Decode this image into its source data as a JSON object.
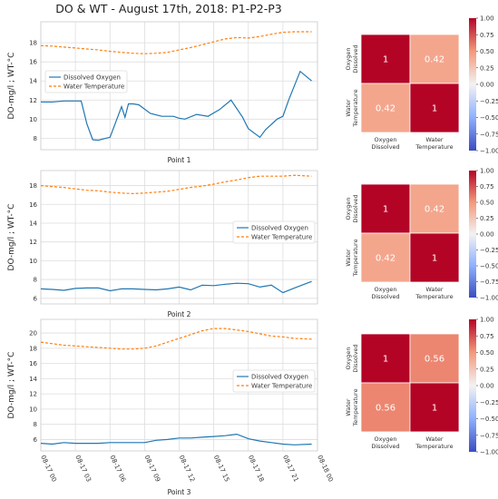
{
  "figure": {
    "title": "DO & WT - August 17th, 2018: P1-P2-P3"
  },
  "colors": {
    "dissolved_oxygen": "#1f77b4",
    "water_temperature": "#ff7f0e",
    "grid": "#dddddd",
    "axes_edge": "#cccccc"
  },
  "chart_data": [
    {
      "type": "line",
      "xlabel": "Point 1",
      "ylabel": "DO-mg/l ; WT-°C",
      "ylim": [
        6.8,
        20.2
      ],
      "yticks": [
        8,
        10,
        12,
        14,
        16,
        18
      ],
      "xlim": [
        0,
        24
      ],
      "x_tick_values": [
        0,
        3,
        6,
        9,
        12,
        15,
        18,
        21,
        24
      ],
      "x_tick_labels": [
        "08-17 00",
        "08-17 03",
        "08-17 06",
        "08-17 09",
        "08-17 12",
        "08-17 15",
        "08-17 18",
        "08-17 21",
        "08-18 00"
      ],
      "show_xtick_labels": false,
      "legend_position": "center-left",
      "grid": true,
      "series": [
        {
          "name": "Dissolved Oxygen",
          "style": "solid",
          "x": [
            0,
            1,
            2,
            3,
            3.5,
            4,
            4.5,
            5,
            6,
            7,
            7.3,
            7.6,
            8,
            8.5,
            9.5,
            10.5,
            11.5,
            12,
            12.5,
            13.5,
            14.5,
            15.5,
            16.5,
            17.5,
            18,
            19,
            19.5,
            20.5,
            21,
            21.5,
            22.5,
            23.5
          ],
          "y": [
            11.8,
            11.8,
            11.9,
            11.9,
            11.9,
            9.5,
            7.85,
            7.8,
            8.1,
            11.3,
            10.2,
            11.6,
            11.6,
            11.5,
            10.6,
            10.3,
            10.3,
            10.1,
            10.0,
            10.5,
            10.3,
            11.0,
            12.0,
            10.2,
            9.0,
            8.1,
            8.9,
            10.0,
            10.3,
            12.0,
            15.0,
            14.0
          ]
        },
        {
          "name": "Water Temperature",
          "style": "dashed",
          "x": [
            0,
            1,
            2,
            3,
            4,
            5,
            6,
            7,
            8,
            9,
            10,
            11,
            12,
            13,
            14,
            15,
            16,
            17,
            18,
            19,
            20,
            21,
            22,
            23.5
          ],
          "y": [
            17.7,
            17.65,
            17.55,
            17.45,
            17.35,
            17.25,
            17.1,
            17.0,
            16.9,
            16.85,
            16.9,
            17.0,
            17.25,
            17.5,
            17.8,
            18.1,
            18.4,
            18.55,
            18.5,
            18.65,
            18.9,
            19.1,
            19.15,
            19.15
          ]
        }
      ]
    },
    {
      "type": "line",
      "xlabel": "Point 2",
      "ylabel": "DO-mg/l ; WT-°C",
      "ylim": [
        5.4,
        19.6
      ],
      "yticks": [
        6,
        8,
        10,
        12,
        14,
        16,
        18
      ],
      "xlim": [
        0,
        24
      ],
      "x_tick_values": [
        0,
        3,
        6,
        9,
        12,
        15,
        18,
        21,
        24
      ],
      "x_tick_labels": [
        "08-17 00",
        "08-17 03",
        "08-17 06",
        "08-17 09",
        "08-17 12",
        "08-17 15",
        "08-17 18",
        "08-17 21",
        "08-18 00"
      ],
      "show_xtick_labels": false,
      "legend_position": "center-right",
      "grid": true,
      "series": [
        {
          "name": "Dissolved Oxygen",
          "style": "solid",
          "x": [
            0,
            1,
            2,
            3,
            4,
            5,
            6,
            7,
            8,
            9,
            10,
            11,
            12,
            13,
            14,
            15,
            16,
            17,
            18,
            19,
            20,
            21,
            22,
            23.5
          ],
          "y": [
            7.0,
            6.95,
            6.85,
            7.05,
            7.1,
            7.1,
            6.8,
            7.0,
            7.0,
            6.95,
            6.9,
            7.0,
            7.2,
            6.9,
            7.4,
            7.35,
            7.5,
            7.6,
            7.55,
            7.2,
            7.4,
            6.6,
            7.1,
            7.8
          ]
        },
        {
          "name": "Water Temperature",
          "style": "dashed",
          "x": [
            0,
            1,
            2,
            3,
            4,
            5,
            6,
            7,
            8,
            9,
            10,
            11,
            12,
            13,
            14,
            15,
            16,
            17,
            18,
            19,
            20,
            21,
            22,
            23.5
          ],
          "y": [
            18.0,
            17.9,
            17.8,
            17.65,
            17.5,
            17.45,
            17.3,
            17.2,
            17.15,
            17.2,
            17.3,
            17.4,
            17.6,
            17.8,
            17.95,
            18.15,
            18.4,
            18.6,
            18.85,
            19.0,
            19.0,
            19.0,
            19.1,
            19.0
          ]
        }
      ]
    },
    {
      "type": "line",
      "xlabel": "Point 3",
      "ylabel": "DO-mg/l ; WT-°C",
      "ylim": [
        4.5,
        21.8
      ],
      "yticks": [
        6,
        8,
        10,
        12,
        14,
        16,
        18,
        20
      ],
      "xlim": [
        0,
        24
      ],
      "x_tick_values": [
        0,
        3,
        6,
        9,
        12,
        15,
        18,
        21,
        24
      ],
      "x_tick_labels": [
        "08-17 00",
        "08-17 03",
        "08-17 06",
        "08-17 09",
        "08-17 12",
        "08-17 15",
        "08-17 18",
        "08-17 21",
        "08-18 00"
      ],
      "show_xtick_labels": true,
      "legend_position": "center-right",
      "grid": true,
      "series": [
        {
          "name": "Dissolved Oxygen",
          "style": "solid",
          "x": [
            0,
            1,
            2,
            3,
            4,
            5,
            6,
            7,
            8,
            9,
            10,
            11,
            12,
            13,
            14,
            15,
            16,
            17,
            18,
            19,
            20,
            21,
            22,
            23.5
          ],
          "y": [
            5.5,
            5.4,
            5.6,
            5.5,
            5.5,
            5.5,
            5.6,
            5.6,
            5.6,
            5.6,
            5.9,
            6.0,
            6.2,
            6.2,
            6.3,
            6.4,
            6.5,
            6.7,
            6.1,
            5.8,
            5.6,
            5.4,
            5.3,
            5.4
          ]
        },
        {
          "name": "Water Temperature",
          "style": "dashed",
          "x": [
            0,
            1,
            2,
            3,
            4,
            5,
            6,
            7,
            8,
            9,
            10,
            11,
            12,
            13,
            14,
            15,
            16,
            17,
            18,
            19,
            20,
            21,
            22,
            23.5
          ],
          "y": [
            18.8,
            18.6,
            18.4,
            18.3,
            18.2,
            18.1,
            18.0,
            17.9,
            17.9,
            18.0,
            18.3,
            18.8,
            19.3,
            19.8,
            20.3,
            20.6,
            20.6,
            20.4,
            20.2,
            19.9,
            19.6,
            19.5,
            19.3,
            19.2
          ]
        }
      ]
    },
    {
      "type": "heatmap",
      "row_labels": [
        "Dissolved\nOxygen",
        "Water\nTemperature"
      ],
      "col_labels": [
        "Dissolved\nOxygen",
        "Water\nTemperature"
      ],
      "row_labels_display": [
        "Oxygen\nDissolved",
        "Water\nTemperature"
      ],
      "col_labels_display": [
        "Oxygen\nDissolved",
        "Water\nTemperature"
      ],
      "values": [
        [
          1,
          0.42
        ],
        [
          0.42,
          1
        ]
      ],
      "value_labels": [
        [
          "1",
          "0.42"
        ],
        [
          "0.42",
          "1"
        ]
      ],
      "colorbar": {
        "min": -1,
        "max": 1,
        "ticks": [
          "1.00",
          "0.75",
          "0.50",
          "0.25",
          "0.00",
          "−0.25",
          "−0.50",
          "−0.75",
          "−1.00"
        ]
      }
    },
    {
      "type": "heatmap",
      "row_labels_display": [
        "Oxygen\nDissolved",
        "Water\nTemperature"
      ],
      "col_labels_display": [
        "Oxygen\nDissolved",
        "Water\nTemperature"
      ],
      "values": [
        [
          1,
          0.42
        ],
        [
          0.42,
          1
        ]
      ],
      "value_labels": [
        [
          "1",
          "0.42"
        ],
        [
          "0.42",
          "1"
        ]
      ],
      "colorbar": {
        "min": -1,
        "max": 1,
        "ticks": [
          "1.00",
          "0.75",
          "0.50",
          "0.25",
          "0.00",
          "−0.25",
          "−0.50",
          "−0.75",
          "−1.00"
        ]
      }
    },
    {
      "type": "heatmap",
      "row_labels_display": [
        "Oxygen\nDissolved",
        "Water\nTemperature"
      ],
      "col_labels_display": [
        "Oxygen\nDissolved",
        "Water\nTemperature"
      ],
      "values": [
        [
          1,
          0.56
        ],
        [
          0.56,
          1
        ]
      ],
      "value_labels": [
        [
          "1",
          "0.56"
        ],
        [
          "0.56",
          "1"
        ]
      ],
      "colorbar": {
        "min": -1,
        "max": 1,
        "ticks": [
          "1.00",
          "0.75",
          "0.50",
          "0.25",
          "0.00",
          "−0.25",
          "−0.50",
          "−0.75",
          "−1.00"
        ]
      }
    }
  ]
}
